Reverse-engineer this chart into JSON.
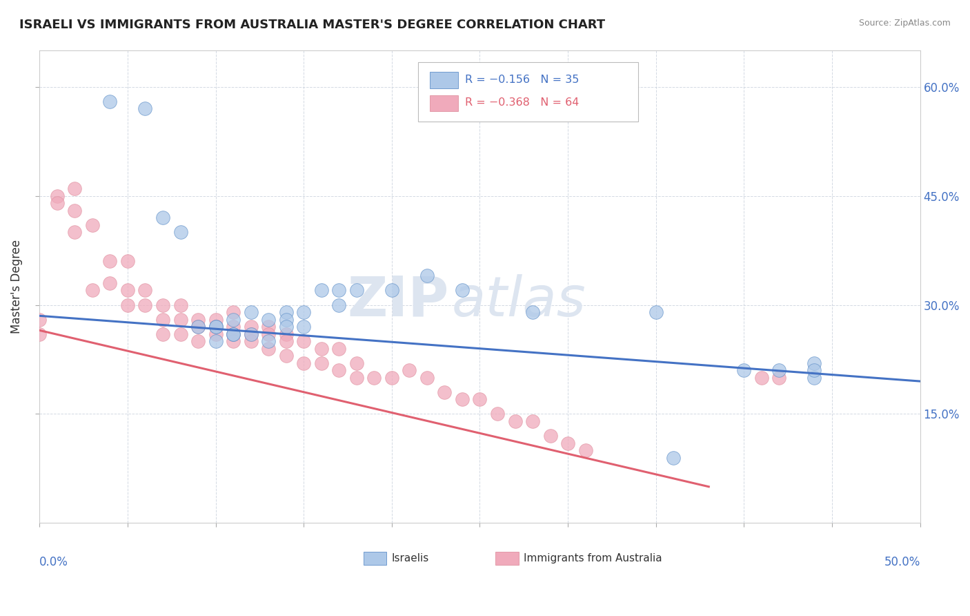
{
  "title": "ISRAELI VS IMMIGRANTS FROM AUSTRALIA MASTER'S DEGREE CORRELATION CHART",
  "source": "Source: ZipAtlas.com",
  "ylabel": "Master's Degree",
  "right_yticks": [
    "60.0%",
    "45.0%",
    "30.0%",
    "15.0%"
  ],
  "right_ytick_vals": [
    0.6,
    0.45,
    0.3,
    0.15
  ],
  "xlim": [
    0.0,
    0.5
  ],
  "ylim": [
    0.0,
    0.65
  ],
  "legend_r1": "R = −0.156",
  "legend_n1": "N = 35",
  "legend_r2": "R = −0.368",
  "legend_n2": "N = 64",
  "watermark_zip": "ZIP",
  "watermark_atlas": "atlas",
  "color_israeli": "#adc8e8",
  "color_immigrant": "#f0aabb",
  "color_line_israeli": "#4472c4",
  "color_line_immigrant": "#e06070",
  "israeli_x": [
    0.04,
    0.06,
    0.07,
    0.08,
    0.09,
    0.1,
    0.1,
    0.1,
    0.11,
    0.11,
    0.11,
    0.12,
    0.12,
    0.13,
    0.13,
    0.14,
    0.14,
    0.14,
    0.15,
    0.15,
    0.16,
    0.17,
    0.17,
    0.18,
    0.2,
    0.22,
    0.24,
    0.28,
    0.36,
    0.4,
    0.42,
    0.44,
    0.44,
    0.44,
    0.35
  ],
  "israeli_y": [
    0.58,
    0.57,
    0.42,
    0.4,
    0.27,
    0.27,
    0.25,
    0.27,
    0.26,
    0.26,
    0.28,
    0.29,
    0.26,
    0.28,
    0.25,
    0.29,
    0.28,
    0.27,
    0.29,
    0.27,
    0.32,
    0.32,
    0.3,
    0.32,
    0.32,
    0.34,
    0.32,
    0.29,
    0.09,
    0.21,
    0.21,
    0.2,
    0.22,
    0.21,
    0.29
  ],
  "immigrant_x": [
    0.0,
    0.0,
    0.01,
    0.01,
    0.02,
    0.02,
    0.02,
    0.03,
    0.03,
    0.04,
    0.04,
    0.05,
    0.05,
    0.05,
    0.06,
    0.06,
    0.07,
    0.07,
    0.07,
    0.08,
    0.08,
    0.08,
    0.09,
    0.09,
    0.09,
    0.1,
    0.1,
    0.1,
    0.11,
    0.11,
    0.11,
    0.11,
    0.12,
    0.12,
    0.12,
    0.13,
    0.13,
    0.13,
    0.14,
    0.14,
    0.14,
    0.15,
    0.15,
    0.16,
    0.16,
    0.17,
    0.17,
    0.18,
    0.18,
    0.19,
    0.2,
    0.21,
    0.22,
    0.23,
    0.24,
    0.25,
    0.26,
    0.27,
    0.28,
    0.29,
    0.3,
    0.31,
    0.41,
    0.42
  ],
  "immigrant_y": [
    0.28,
    0.26,
    0.45,
    0.44,
    0.46,
    0.43,
    0.4,
    0.41,
    0.32,
    0.36,
    0.33,
    0.36,
    0.32,
    0.3,
    0.32,
    0.3,
    0.3,
    0.28,
    0.26,
    0.3,
    0.28,
    0.26,
    0.28,
    0.27,
    0.25,
    0.28,
    0.27,
    0.26,
    0.29,
    0.27,
    0.26,
    0.25,
    0.27,
    0.26,
    0.25,
    0.27,
    0.26,
    0.24,
    0.26,
    0.25,
    0.23,
    0.25,
    0.22,
    0.24,
    0.22,
    0.24,
    0.21,
    0.22,
    0.2,
    0.2,
    0.2,
    0.21,
    0.2,
    0.18,
    0.17,
    0.17,
    0.15,
    0.14,
    0.14,
    0.12,
    0.11,
    0.1,
    0.2,
    0.2
  ]
}
